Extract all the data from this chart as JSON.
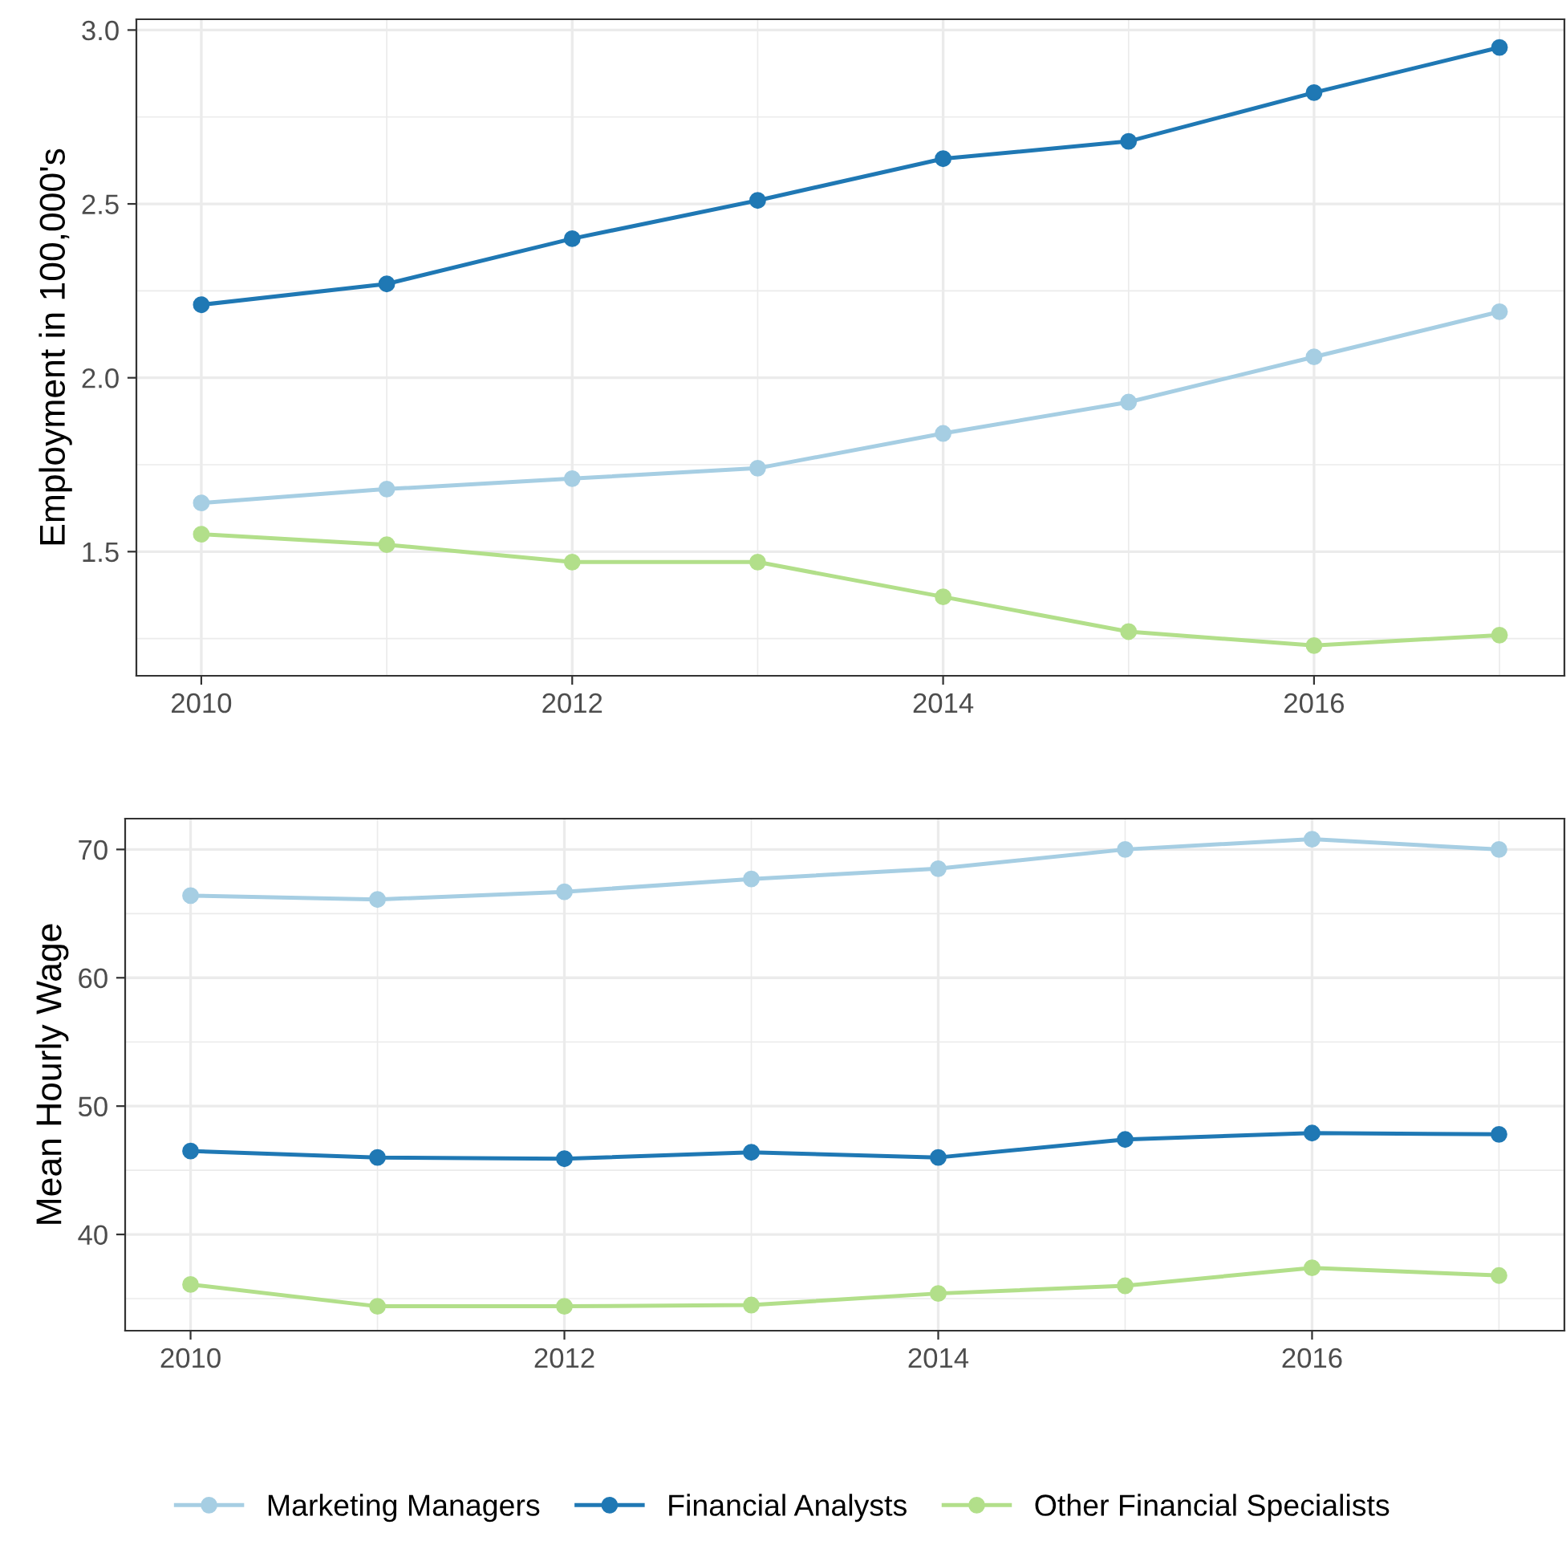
{
  "chart_data": [
    {
      "type": "line",
      "ylabel": "Employment in 100,000's",
      "x": [
        2010,
        2011,
        2012,
        2013,
        2014,
        2015,
        2016,
        2017
      ],
      "xlim": [
        2009.65,
        2017.35
      ],
      "xticks": [
        2010,
        2012,
        2014,
        2016
      ],
      "ylim": [
        1.143,
        3.031
      ],
      "yticks": [
        {
          "value": 1.5,
          "label": "1.5"
        },
        {
          "value": 2.0,
          "label": "2.0"
        },
        {
          "value": 2.5,
          "label": "2.5"
        },
        {
          "value": 3.0,
          "label": "3.0"
        }
      ],
      "grid": true,
      "marker": "circle",
      "line_style": "solid",
      "legend": "bottom",
      "series": [
        {
          "name": "Marketing Managers",
          "color": "#a6cee3",
          "values": [
            1.64,
            1.68,
            1.71,
            1.74,
            1.84,
            1.93,
            2.06,
            2.19
          ]
        },
        {
          "name": "Financial Analysts",
          "color": "#1f78b4",
          "values": [
            2.21,
            2.27,
            2.4,
            2.51,
            2.63,
            2.68,
            2.82,
            2.95
          ]
        },
        {
          "name": "Other Financial Specialists",
          "color": "#b2df8a",
          "values": [
            1.55,
            1.52,
            1.47,
            1.47,
            1.37,
            1.27,
            1.23,
            1.26
          ]
        }
      ]
    },
    {
      "type": "line",
      "ylabel": "Mean Hourly Wage",
      "x": [
        2010,
        2011,
        2012,
        2013,
        2014,
        2015,
        2016,
        2017
      ],
      "xlim": [
        2009.65,
        2017.35
      ],
      "xticks": [
        2010,
        2012,
        2014,
        2016
      ],
      "ylim": [
        32.5,
        72.4
      ],
      "yticks": [
        40,
        50,
        60,
        70
      ],
      "grid": true,
      "marker": "circle",
      "line_style": "solid",
      "legend": "bottom",
      "series": [
        {
          "name": "Marketing Managers",
          "color": "#a6cee3",
          "values": [
            66.4,
            66.1,
            66.7,
            67.7,
            68.5,
            70.0,
            70.8,
            70.0
          ]
        },
        {
          "name": "Financial Analysts",
          "color": "#1f78b4",
          "values": [
            46.5,
            46.0,
            45.9,
            46.4,
            46.0,
            47.4,
            47.9,
            47.8
          ]
        },
        {
          "name": "Other Financial Specialists",
          "color": "#b2df8a",
          "values": [
            36.1,
            34.4,
            34.4,
            34.5,
            35.4,
            36.0,
            37.4,
            36.8
          ]
        }
      ]
    }
  ]
}
